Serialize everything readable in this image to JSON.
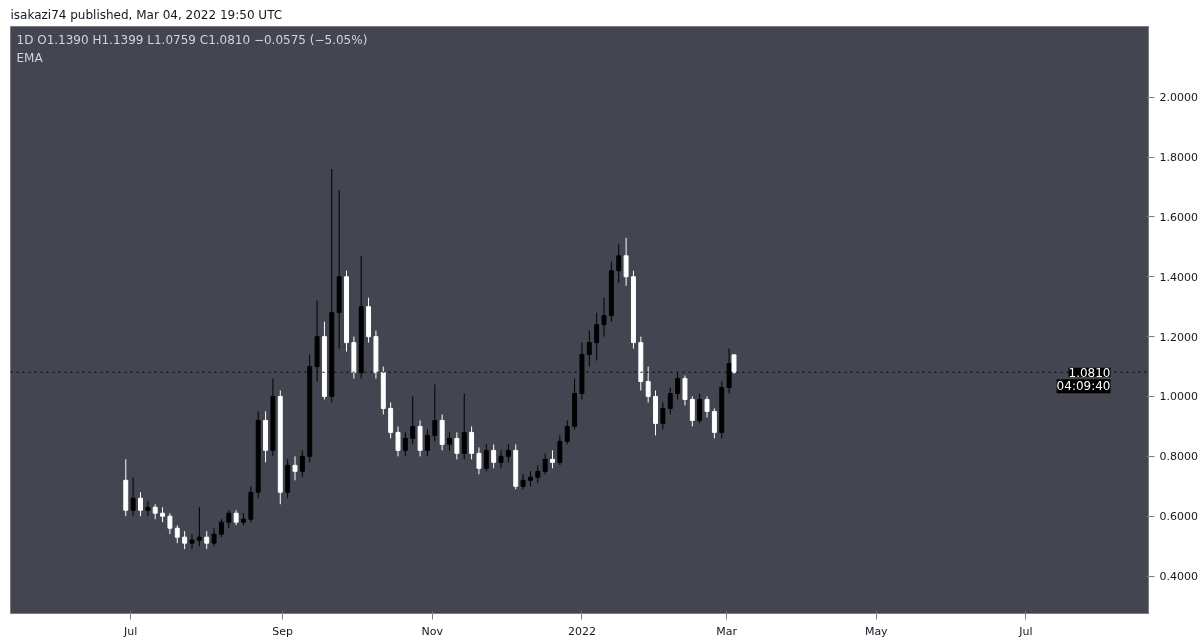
{
  "chart_data": {
    "type": "candlestick",
    "title": "1D  O1.1390  H1.1399  L1.0759  C1.0810  −0.0575 (−5.05%)",
    "subtitle": "isakazi74 published, Mar 04, 2022 19:50 UTC",
    "annotations": [
      "EMA",
      "04:09:40"
    ],
    "x": [
      "2021-06-29",
      "2021-07-02",
      "2021-07-05",
      "2021-07-08",
      "2021-07-11",
      "2021-07-14",
      "2021-07-17",
      "2021-07-20",
      "2021-07-23",
      "2021-07-26",
      "2021-07-29",
      "2021-08-01",
      "2021-08-04",
      "2021-08-07",
      "2021-08-10",
      "2021-08-13",
      "2021-08-16",
      "2021-08-19",
      "2021-08-22",
      "2021-08-25",
      "2021-08-28",
      "2021-08-31",
      "2021-09-03",
      "2021-09-06",
      "2021-09-09",
      "2021-09-12",
      "2021-09-15",
      "2021-09-18",
      "2021-09-21",
      "2021-09-24",
      "2021-09-27",
      "2021-09-30",
      "2021-10-03",
      "2021-10-06",
      "2021-10-09",
      "2021-10-12",
      "2021-10-15",
      "2021-10-18",
      "2021-10-21",
      "2021-10-24",
      "2021-10-27",
      "2021-10-30",
      "2021-11-02",
      "2021-11-05",
      "2021-11-08",
      "2021-11-11",
      "2021-11-14",
      "2021-11-17",
      "2021-11-20",
      "2021-11-23",
      "2021-11-26",
      "2021-11-29",
      "2021-12-02",
      "2021-12-05",
      "2021-12-08",
      "2021-12-11",
      "2021-12-14",
      "2021-12-17",
      "2021-12-20",
      "2021-12-23",
      "2021-12-26",
      "2021-12-29",
      "2022-01-01",
      "2022-01-04",
      "2022-01-07",
      "2022-01-10",
      "2022-01-13",
      "2022-01-16",
      "2022-01-19",
      "2022-01-22",
      "2022-01-25",
      "2022-01-28",
      "2022-01-31",
      "2022-02-03",
      "2022-02-06",
      "2022-02-09",
      "2022-02-12",
      "2022-02-15",
      "2022-02-18",
      "2022-02-21",
      "2022-02-24",
      "2022-02-27",
      "2022-03-02",
      "2022-03-04"
    ],
    "ohlc": [
      [
        0.72,
        0.79,
        0.6,
        0.62
      ],
      [
        0.62,
        0.73,
        0.6,
        0.66
      ],
      [
        0.66,
        0.68,
        0.6,
        0.62
      ],
      [
        0.62,
        0.65,
        0.6,
        0.63
      ],
      [
        0.63,
        0.64,
        0.59,
        0.61
      ],
      [
        0.61,
        0.63,
        0.58,
        0.6
      ],
      [
        0.6,
        0.61,
        0.54,
        0.56
      ],
      [
        0.56,
        0.57,
        0.51,
        0.53
      ],
      [
        0.53,
        0.55,
        0.49,
        0.51
      ],
      [
        0.51,
        0.54,
        0.49,
        0.52
      ],
      [
        0.52,
        0.63,
        0.5,
        0.53
      ],
      [
        0.53,
        0.55,
        0.49,
        0.51
      ],
      [
        0.51,
        0.56,
        0.5,
        0.54
      ],
      [
        0.54,
        0.59,
        0.53,
        0.58
      ],
      [
        0.58,
        0.62,
        0.56,
        0.61
      ],
      [
        0.61,
        0.62,
        0.57,
        0.58
      ],
      [
        0.58,
        0.61,
        0.57,
        0.59
      ],
      [
        0.59,
        0.7,
        0.58,
        0.68
      ],
      [
        0.68,
        0.95,
        0.66,
        0.92
      ],
      [
        0.92,
        0.95,
        0.78,
        0.82
      ],
      [
        0.82,
        1.06,
        0.8,
        1.0
      ],
      [
        1.0,
        1.02,
        0.64,
        0.68
      ],
      [
        0.68,
        0.79,
        0.66,
        0.77
      ],
      [
        0.77,
        0.8,
        0.72,
        0.75
      ],
      [
        0.75,
        0.82,
        0.73,
        0.8
      ],
      [
        0.8,
        1.14,
        0.78,
        1.1
      ],
      [
        1.1,
        1.32,
        1.05,
        1.2
      ],
      [
        1.2,
        1.25,
        0.99,
        1.0
      ],
      [
        1.0,
        1.76,
        0.98,
        1.28
      ],
      [
        1.28,
        1.69,
        1.16,
        1.4
      ],
      [
        1.4,
        1.42,
        1.15,
        1.18
      ],
      [
        1.18,
        1.2,
        1.06,
        1.08
      ],
      [
        1.08,
        1.47,
        1.06,
        1.3
      ],
      [
        1.3,
        1.33,
        1.18,
        1.2
      ],
      [
        1.2,
        1.22,
        1.06,
        1.08
      ],
      [
        1.08,
        1.1,
        0.94,
        0.96
      ],
      [
        0.96,
        0.98,
        0.86,
        0.88
      ],
      [
        0.88,
        0.9,
        0.8,
        0.82
      ],
      [
        0.82,
        0.88,
        0.8,
        0.86
      ],
      [
        0.86,
        1.0,
        0.84,
        0.9
      ],
      [
        0.9,
        0.92,
        0.8,
        0.82
      ],
      [
        0.82,
        0.89,
        0.8,
        0.87
      ],
      [
        0.87,
        1.04,
        0.85,
        0.92
      ],
      [
        0.92,
        0.94,
        0.82,
        0.84
      ],
      [
        0.84,
        0.88,
        0.82,
        0.86
      ],
      [
        0.86,
        0.88,
        0.79,
        0.81
      ],
      [
        0.81,
        1.01,
        0.79,
        0.88
      ],
      [
        0.88,
        0.9,
        0.79,
        0.81
      ],
      [
        0.81,
        0.83,
        0.74,
        0.76
      ],
      [
        0.76,
        0.84,
        0.75,
        0.82
      ],
      [
        0.82,
        0.84,
        0.76,
        0.78
      ],
      [
        0.78,
        0.82,
        0.76,
        0.8
      ],
      [
        0.8,
        0.84,
        0.78,
        0.82
      ],
      [
        0.82,
        0.84,
        0.69,
        0.7
      ],
      [
        0.7,
        0.74,
        0.69,
        0.72
      ],
      [
        0.72,
        0.75,
        0.7,
        0.73
      ],
      [
        0.73,
        0.77,
        0.71,
        0.75
      ],
      [
        0.75,
        0.81,
        0.74,
        0.79
      ],
      [
        0.79,
        0.82,
        0.76,
        0.78
      ],
      [
        0.78,
        0.87,
        0.77,
        0.85
      ],
      [
        0.85,
        0.92,
        0.84,
        0.9
      ],
      [
        0.9,
        1.06,
        0.89,
        1.01
      ],
      [
        1.01,
        1.18,
        0.99,
        1.14
      ],
      [
        1.14,
        1.22,
        1.1,
        1.18
      ],
      [
        1.18,
        1.28,
        1.12,
        1.24
      ],
      [
        1.24,
        1.33,
        1.2,
        1.27
      ],
      [
        1.27,
        1.45,
        1.25,
        1.42
      ],
      [
        1.42,
        1.51,
        1.38,
        1.47
      ],
      [
        1.47,
        1.53,
        1.37,
        1.4
      ],
      [
        1.4,
        1.42,
        1.16,
        1.18
      ],
      [
        1.18,
        1.2,
        1.02,
        1.05
      ],
      [
        1.05,
        1.1,
        0.98,
        1.0
      ],
      [
        1.0,
        1.02,
        0.87,
        0.91
      ],
      [
        0.91,
        0.98,
        0.89,
        0.96
      ],
      [
        0.96,
        1.03,
        0.94,
        1.01
      ],
      [
        1.01,
        1.08,
        0.99,
        1.06
      ],
      [
        1.06,
        1.07,
        0.97,
        0.99
      ],
      [
        0.99,
        1.0,
        0.9,
        0.92
      ],
      [
        0.92,
        1.01,
        0.91,
        0.99
      ],
      [
        0.99,
        1.0,
        0.93,
        0.95
      ],
      [
        0.95,
        0.96,
        0.86,
        0.88
      ],
      [
        0.88,
        1.05,
        0.86,
        1.03
      ],
      [
        1.03,
        1.16,
        1.01,
        1.11
      ],
      [
        1.139,
        1.1399,
        1.0759,
        1.081
      ]
    ],
    "colors": [
      "#ffffff",
      "#000000",
      "#ffffff",
      "#000000",
      "#ffffff",
      "#ffffff",
      "#ffffff",
      "#ffffff",
      "#ffffff",
      "#000000",
      "#000000",
      "#ffffff",
      "#000000",
      "#000000",
      "#000000",
      "#ffffff",
      "#000000",
      "#000000",
      "#000000",
      "#ffffff",
      "#000000",
      "#ffffff",
      "#000000",
      "#ffffff",
      "#000000",
      "#000000",
      "#000000",
      "#ffffff",
      "#000000",
      "#000000",
      "#ffffff",
      "#ffffff",
      "#000000",
      "#ffffff",
      "#ffffff",
      "#ffffff",
      "#ffffff",
      "#ffffff",
      "#000000",
      "#000000",
      "#ffffff",
      "#000000",
      "#000000",
      "#ffffff",
      "#000000",
      "#ffffff",
      "#000000",
      "#ffffff",
      "#ffffff",
      "#000000",
      "#ffffff",
      "#000000",
      "#000000",
      "#ffffff",
      "#000000",
      "#000000",
      "#000000",
      "#000000",
      "#ffffff",
      "#000000",
      "#000000",
      "#000000",
      "#000000",
      "#000000",
      "#000000",
      "#000000",
      "#000000",
      "#000000",
      "#ffffff",
      "#ffffff",
      "#ffffff",
      "#ffffff",
      "#ffffff",
      "#000000",
      "#000000",
      "#000000",
      "#ffffff",
      "#ffffff",
      "#000000",
      "#ffffff",
      "#ffffff",
      "#000000",
      "#000000",
      "#ffffff"
    ],
    "xlim": [
      "2021-05-13",
      "2022-08-20"
    ],
    "xticks": [
      {
        "value": "2021-07-01",
        "label": "Jul"
      },
      {
        "value": "2021-09-01",
        "label": "Sep"
      },
      {
        "value": "2021-11-01",
        "label": "Nov"
      },
      {
        "value": "2022-01-01",
        "label": "2022"
      },
      {
        "value": "2022-03-01",
        "label": "Mar"
      },
      {
        "value": "2022-05-01",
        "label": "May"
      },
      {
        "value": "2022-07-01",
        "label": "Jul"
      }
    ],
    "ylim": [
      0.275,
      2.236
    ],
    "yticks": [
      {
        "value": 0.4,
        "label": "0.4000"
      },
      {
        "value": 0.6,
        "label": "0.6000"
      },
      {
        "value": 0.8,
        "label": "0.8000"
      },
      {
        "value": 1.0,
        "label": "1.0000"
      },
      {
        "value": 1.2,
        "label": "1.2000"
      },
      {
        "value": 1.4,
        "label": "1.4000"
      },
      {
        "value": 1.6,
        "label": "1.6000"
      },
      {
        "value": 1.8,
        "label": "1.8000"
      },
      {
        "value": 2.0,
        "label": "2.0000"
      }
    ],
    "ref_lines": [
      {
        "axis": "y",
        "value": 1.081,
        "label": "1.0810",
        "color": "#000000",
        "line_style": "dotted"
      }
    ],
    "grid": false
  }
}
